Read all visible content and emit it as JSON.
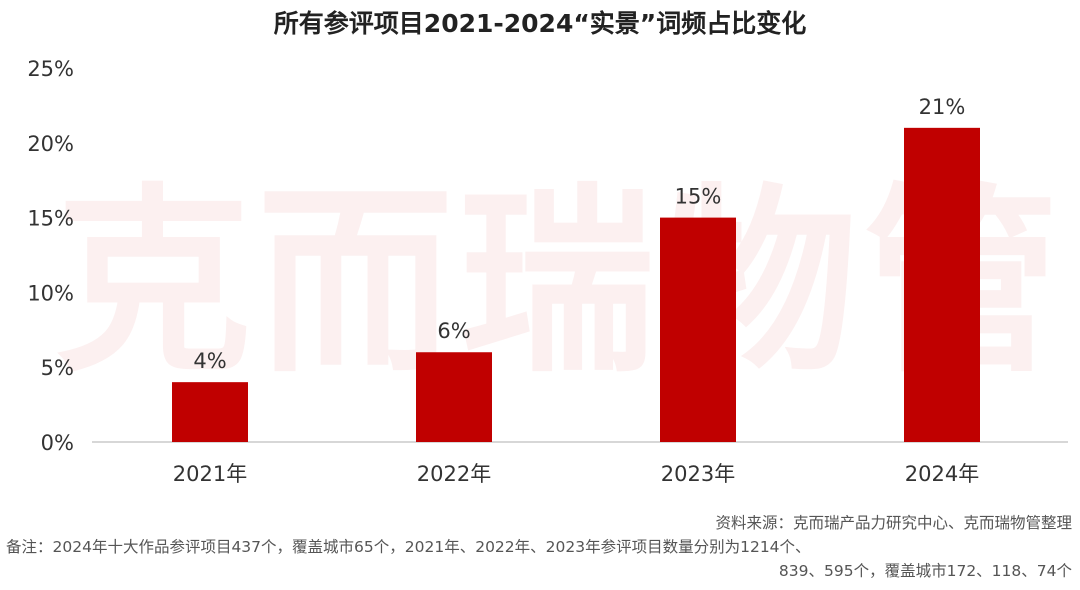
{
  "chart_data": {
    "type": "bar",
    "title": "所有参评项目2021-2024“实景”词频占比变化",
    "categories": [
      "2021年",
      "2022年",
      "2023年",
      "2024年"
    ],
    "values": [
      4,
      6,
      15,
      21
    ],
    "value_labels": [
      "4%",
      "6%",
      "15%",
      "21%"
    ],
    "ylim": [
      0,
      25
    ],
    "yticks": [
      0,
      5,
      10,
      15,
      20,
      25
    ],
    "ytick_labels": [
      "0%",
      "5%",
      "10%",
      "15%",
      "20%",
      "25%"
    ],
    "xlabel": "",
    "ylabel": "",
    "grid": false,
    "bar_color": "#c00000"
  },
  "watermark": "克而瑞物管",
  "notes": {
    "source": "资料来源：克而瑞产品力研究中心、克而瑞物管整理",
    "remark_line1": "备注：2024年十大作品参评项目437个，覆盖城市65个，2021年、2022年、2023年参评项目数量分别为1214个、",
    "remark_line2": "839、595个，覆盖城市172、118、74个"
  }
}
